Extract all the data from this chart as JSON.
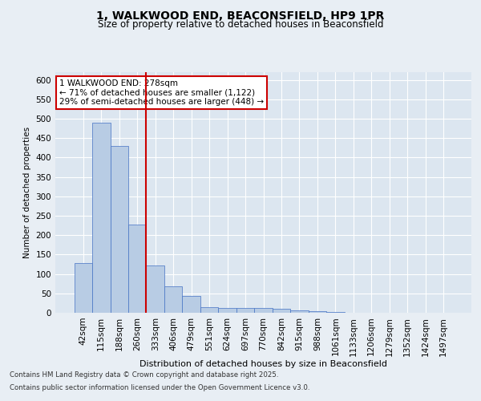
{
  "title_line1": "1, WALKWOOD END, BEACONSFIELD, HP9 1PR",
  "title_line2": "Size of property relative to detached houses in Beaconsfield",
  "xlabel": "Distribution of detached houses by size in Beaconsfield",
  "ylabel": "Number of detached properties",
  "categories": [
    "42sqm",
    "115sqm",
    "188sqm",
    "260sqm",
    "333sqm",
    "406sqm",
    "479sqm",
    "551sqm",
    "624sqm",
    "697sqm",
    "770sqm",
    "842sqm",
    "915sqm",
    "988sqm",
    "1061sqm",
    "1133sqm",
    "1206sqm",
    "1279sqm",
    "1352sqm",
    "1424sqm",
    "1497sqm"
  ],
  "values": [
    128,
    490,
    430,
    228,
    122,
    68,
    43,
    14,
    12,
    13,
    12,
    10,
    7,
    5,
    2,
    1,
    1,
    0,
    0,
    0,
    0
  ],
  "bar_color": "#b8cce4",
  "bar_edge_color": "#4472c4",
  "vline_x": 3.5,
  "vline_color": "#cc0000",
  "annotation_line1": "1 WALKWOOD END: 278sqm",
  "annotation_line2": "← 71% of detached houses are smaller (1,122)",
  "annotation_line3": "29% of semi-detached houses are larger (448) →",
  "annotation_box_color": "#cc0000",
  "background_color": "#e8eef4",
  "plot_bg_color": "#dce6f0",
  "footer_line1": "Contains HM Land Registry data © Crown copyright and database right 2025.",
  "footer_line2": "Contains public sector information licensed under the Open Government Licence v3.0.",
  "ylim": [
    0,
    620
  ],
  "yticks": [
    0,
    50,
    100,
    150,
    200,
    250,
    300,
    350,
    400,
    450,
    500,
    550,
    600
  ]
}
